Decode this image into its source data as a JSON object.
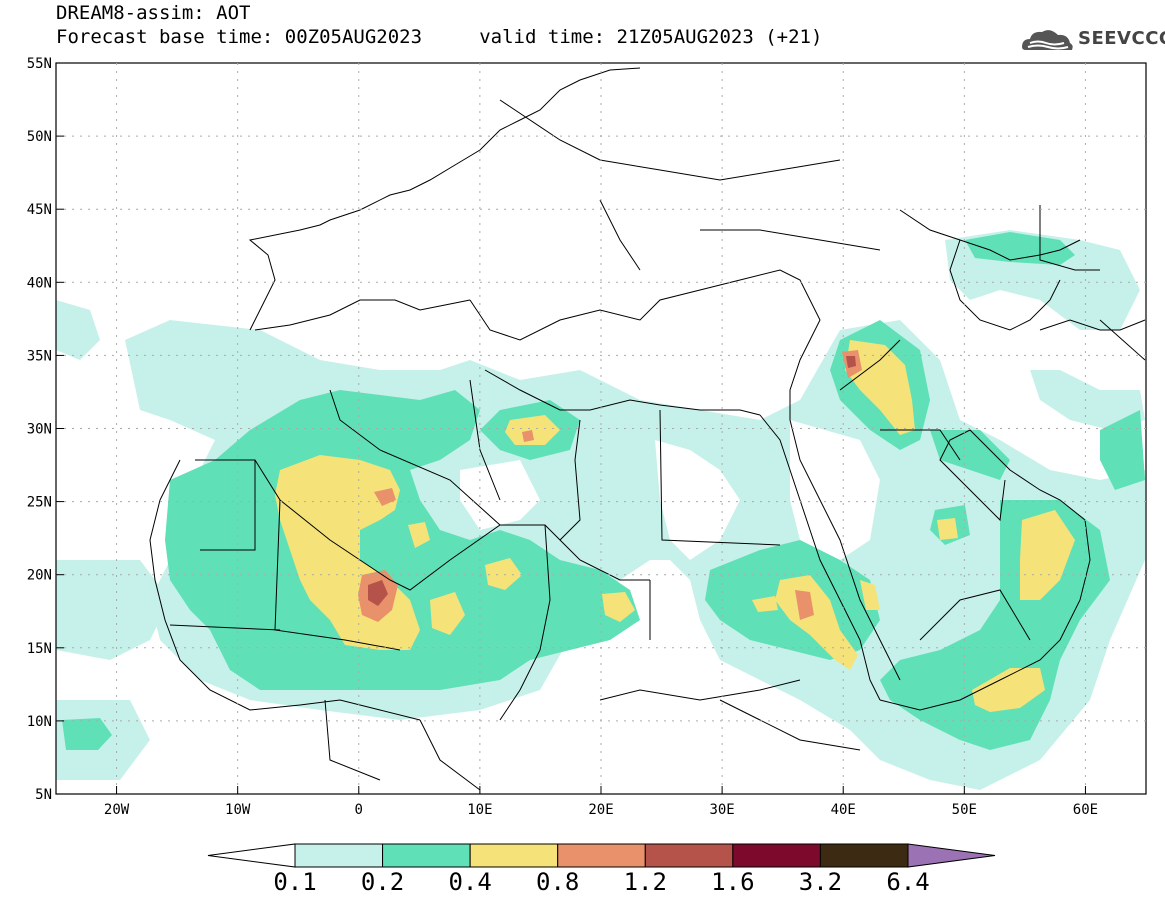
{
  "header": {
    "line1": "DREAM8-assim: AOT",
    "line2": "Forecast base time: 00Z05AUG2023     valid time: 21Z05AUG2023 (+21)",
    "logo_text": "SEEVCCC"
  },
  "map": {
    "lon_range": [
      -25,
      65
    ],
    "lat_range": [
      5,
      55
    ],
    "lon_ticks": [
      {
        "value": -20,
        "label": "20W"
      },
      {
        "value": -10,
        "label": "10W"
      },
      {
        "value": 0,
        "label": "0"
      },
      {
        "value": 10,
        "label": "10E"
      },
      {
        "value": 20,
        "label": "20E"
      },
      {
        "value": 30,
        "label": "30E"
      },
      {
        "value": 40,
        "label": "40E"
      },
      {
        "value": 50,
        "label": "50E"
      },
      {
        "value": 60,
        "label": "60E"
      }
    ],
    "lat_ticks": [
      {
        "value": 55,
        "label": "55N"
      },
      {
        "value": 50,
        "label": "50N"
      },
      {
        "value": 45,
        "label": "45N"
      },
      {
        "value": 40,
        "label": "40N"
      },
      {
        "value": 35,
        "label": "35N"
      },
      {
        "value": 30,
        "label": "30N"
      },
      {
        "value": 25,
        "label": "25N"
      },
      {
        "value": 20,
        "label": "20N"
      },
      {
        "value": 15,
        "label": "15N"
      },
      {
        "value": 10,
        "label": "10N"
      },
      {
        "value": 5,
        "label": "5N"
      }
    ]
  },
  "colorbar": {
    "labels": [
      "0.1",
      "0.2",
      "0.4",
      "0.8",
      "1.2",
      "1.6",
      "3.2",
      "6.4"
    ],
    "colors": [
      "#c6f1ea",
      "#5fe0b7",
      "#f5e37a",
      "#e8916a",
      "#b5534a",
      "#7d0a2c",
      "#3d2a12",
      "#9b72b3"
    ]
  }
}
